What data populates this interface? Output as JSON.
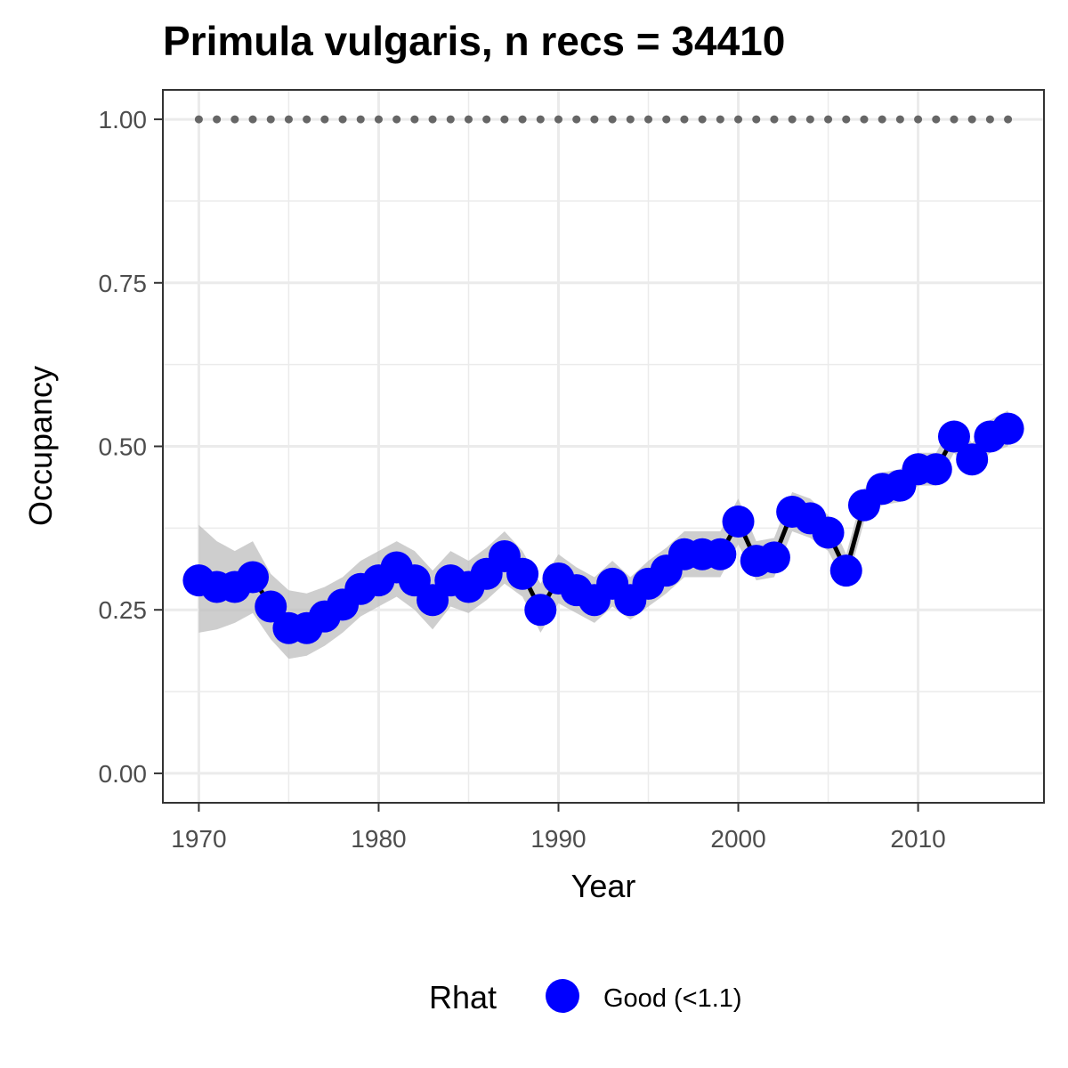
{
  "chart_data": {
    "type": "line",
    "title": "Primula vulgaris, n recs = 34410",
    "xlabel": "Year",
    "ylabel": "Occupancy",
    "xlim": [
      1968,
      2017
    ],
    "ylim": [
      -0.045,
      1.045
    ],
    "x_ticks": [
      1970,
      1980,
      1990,
      2000,
      2010
    ],
    "x_tick_labels": [
      "1970",
      "1980",
      "1990",
      "2000",
      "2010"
    ],
    "y_ticks": [
      0,
      0.25,
      0.5,
      0.75,
      1.0
    ],
    "y_tick_labels": [
      "0.00",
      "0.25",
      "0.50",
      "0.75",
      "1.00"
    ],
    "grid": true,
    "legend": {
      "title": "Rhat",
      "placement": "bottom",
      "entries": [
        {
          "label": "Good (<1.1)",
          "color": "#0000ff"
        }
      ]
    },
    "colors": {
      "points": "#0000ff",
      "line": "#000000",
      "ribbon": "#bebebe",
      "reference": "#666666",
      "grid": "#ebebeb",
      "border": "#333333"
    },
    "x": [
      1970,
      1971,
      1972,
      1973,
      1974,
      1975,
      1976,
      1977,
      1978,
      1979,
      1980,
      1981,
      1982,
      1983,
      1984,
      1985,
      1986,
      1987,
      1988,
      1989,
      1990,
      1991,
      1992,
      1993,
      1994,
      1995,
      1996,
      1997,
      1998,
      1999,
      2000,
      2001,
      2002,
      2003,
      2004,
      2005,
      2006,
      2007,
      2008,
      2009,
      2010,
      2011,
      2012,
      2013,
      2014,
      2015
    ],
    "series": [
      {
        "values": [
          0.295,
          0.285,
          0.285,
          0.3,
          0.255,
          0.222,
          0.222,
          0.24,
          0.258,
          0.282,
          0.295,
          0.315,
          0.295,
          0.265,
          0.295,
          0.285,
          0.305,
          0.332,
          0.305,
          0.25,
          0.298,
          0.28,
          0.265,
          0.29,
          0.265,
          0.29,
          0.31,
          0.335,
          0.335,
          0.335,
          0.385,
          0.325,
          0.33,
          0.4,
          0.39,
          0.368,
          0.31,
          0.41,
          0.435,
          0.44,
          0.465,
          0.465,
          0.515,
          0.48,
          0.515,
          0.527
        ],
        "lower": [
          0.215,
          0.22,
          0.23,
          0.245,
          0.205,
          0.175,
          0.18,
          0.195,
          0.215,
          0.24,
          0.255,
          0.27,
          0.25,
          0.22,
          0.255,
          0.245,
          0.265,
          0.29,
          0.27,
          0.215,
          0.26,
          0.245,
          0.23,
          0.255,
          0.235,
          0.255,
          0.275,
          0.3,
          0.3,
          0.3,
          0.35,
          0.295,
          0.3,
          0.37,
          0.36,
          0.34,
          0.285,
          0.385,
          0.41,
          0.415,
          0.44,
          0.44,
          0.49,
          0.455,
          0.49,
          0.5
        ],
        "upper": [
          0.38,
          0.355,
          0.34,
          0.355,
          0.305,
          0.28,
          0.275,
          0.285,
          0.3,
          0.325,
          0.34,
          0.355,
          0.34,
          0.31,
          0.34,
          0.325,
          0.345,
          0.37,
          0.34,
          0.29,
          0.335,
          0.315,
          0.3,
          0.325,
          0.3,
          0.325,
          0.345,
          0.37,
          0.37,
          0.37,
          0.42,
          0.355,
          0.36,
          0.43,
          0.42,
          0.395,
          0.335,
          0.435,
          0.46,
          0.465,
          0.49,
          0.49,
          0.54,
          0.505,
          0.54,
          0.555
        ]
      }
    ],
    "reference_line": {
      "y": 1.0,
      "style": "dotted"
    }
  }
}
